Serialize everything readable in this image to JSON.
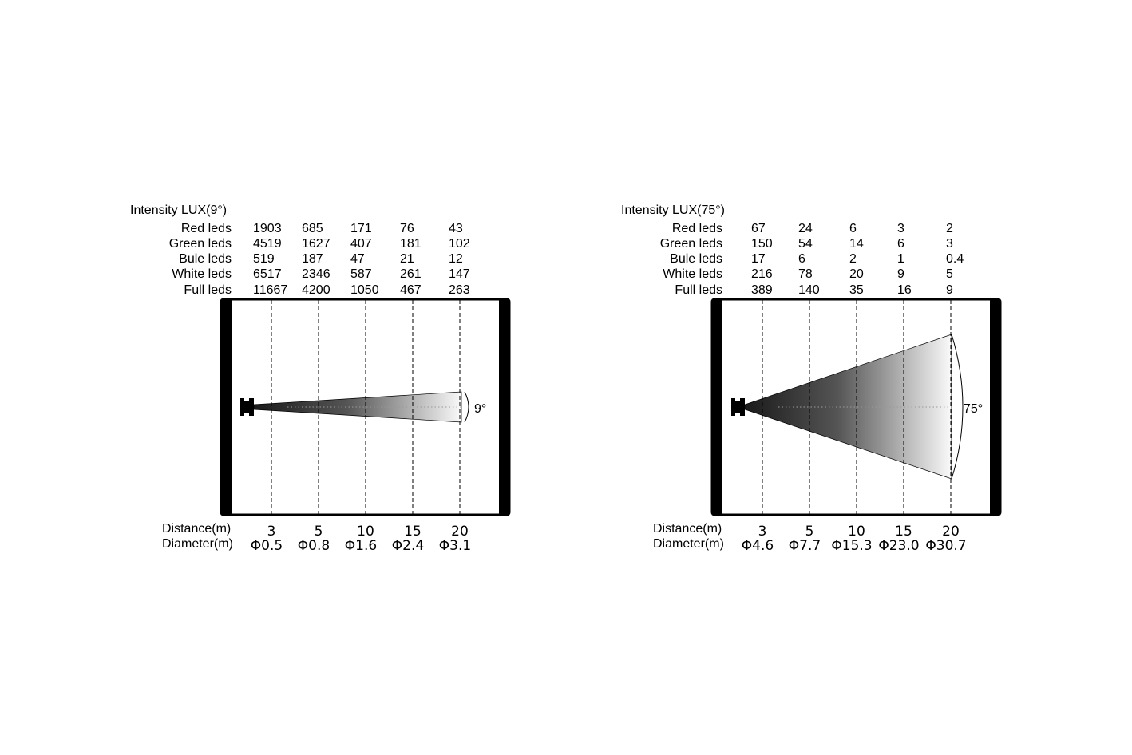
{
  "row_labels": [
    "Red leds",
    "Green leds",
    "Bule leds",
    "White leds",
    "Full leds"
  ],
  "distance_label": "Distance(m)",
  "diameter_label": "Diameter(m)",
  "distances": [
    "3",
    "5",
    "10",
    "15",
    "20"
  ],
  "panels": [
    {
      "title": "Intensity LUX(9°)",
      "beam_angle_label": "9°",
      "beam_angle_deg": 9,
      "rows": [
        [
          "1903",
          "685",
          "171",
          "76",
          "43"
        ],
        [
          "4519",
          "1627",
          "407",
          "181",
          "102"
        ],
        [
          "519",
          "187",
          "47",
          "21",
          "12"
        ],
        [
          "6517",
          "2346",
          "587",
          "261",
          "147"
        ],
        [
          "11667",
          "4200",
          "1050",
          "467",
          "263"
        ]
      ],
      "diameters": [
        "Φ0.5",
        "Φ0.8",
        "Φ1.6",
        "Φ2.4",
        "Φ3.1"
      ]
    },
    {
      "title": "Intensity LUX(75°)",
      "beam_angle_label": "75°",
      "beam_angle_deg": 75,
      "rows": [
        [
          "67",
          "24",
          "6",
          "3",
          "2"
        ],
        [
          "150",
          "54",
          "14",
          "6",
          "3"
        ],
        [
          "17",
          "6",
          "2",
          "1",
          "0.4"
        ],
        [
          "216",
          "78",
          "20",
          "9",
          "5"
        ],
        [
          "389",
          "140",
          "35",
          "16",
          "9"
        ]
      ],
      "diameters": [
        "Φ4.6",
        "Φ7.7",
        "Φ15.3",
        "Φ23.0",
        "Φ30.7"
      ]
    }
  ]
}
